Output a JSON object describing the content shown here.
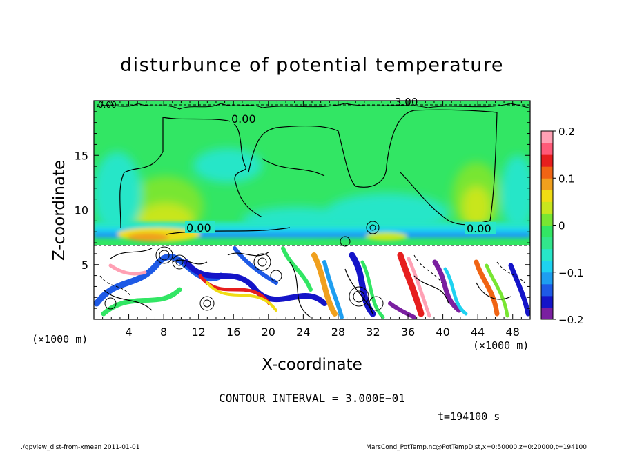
{
  "chart_data": {
    "type": "heatmap",
    "title": "disturbunce of potential temperature",
    "xlabel": "X-coordinate",
    "ylabel": "Z-coordinate",
    "x_unit": "(×1000 m)",
    "y_unit": "(×1000 m)",
    "xlim": [
      0,
      50
    ],
    "ylim": [
      0,
      20
    ],
    "x_ticks": [
      "4",
      "8",
      "12",
      "16",
      "20",
      "24",
      "28",
      "32",
      "36",
      "40",
      "44",
      "48"
    ],
    "y_ticks": [
      "5",
      "10",
      "15"
    ],
    "colorbar": {
      "range": [
        -0.2,
        0.2
      ],
      "tick_labels": [
        "0.2",
        "0.1",
        "0",
        "−0.1",
        "−0.2"
      ],
      "colors": [
        "#7a1fa0",
        "#1414c8",
        "#1e5ae6",
        "#1e9ef0",
        "#1ed2f0",
        "#28e6c8",
        "#32e68c",
        "#32e664",
        "#78e632",
        "#c8e61e",
        "#f0dc14",
        "#f0a01e",
        "#f06414",
        "#e61e1e",
        "#ff5a78",
        "#ffa0b4"
      ]
    },
    "contour_labels": [
      "0.00",
      "0.00",
      "0.00",
      "0.00",
      "3.00"
    ],
    "contour_interval": "CONTOUR INTERVAL = 3.000E−01",
    "time_label": "t=194100 s",
    "footer_left": "./gpview_dist-from-xmean  2011-01-01",
    "footer_right": "MarsCond_PotTemp.nc@PotTempDist,x=0:50000,z=0:20000,t=194100"
  }
}
